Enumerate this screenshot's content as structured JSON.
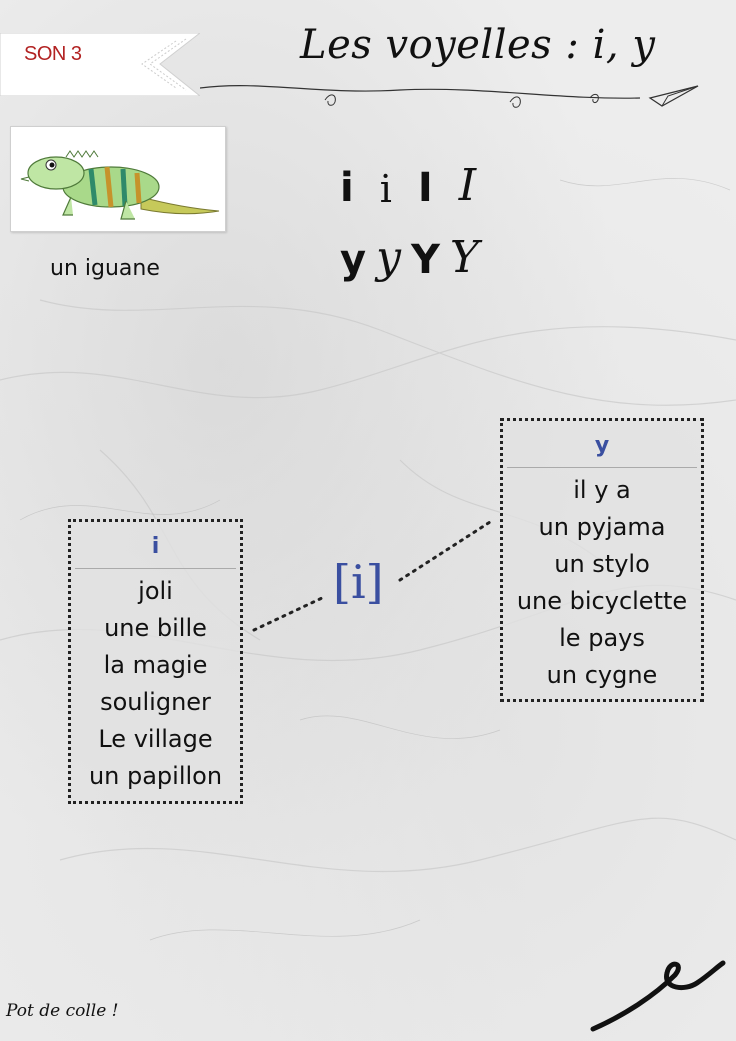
{
  "tag": {
    "label": "SON 3",
    "color": "#b22222"
  },
  "title": "Les voyelles : i, y",
  "illustration": {
    "icon": "iguana-icon",
    "caption": "un iguane"
  },
  "letters": {
    "i": [
      "i",
      "i",
      "I",
      "I"
    ],
    "y": [
      "y",
      "y",
      "Y",
      "Y"
    ]
  },
  "phoneme": "[i]",
  "accent_color": "#3a4fa0",
  "box_i": {
    "header": "i",
    "words": [
      "joli",
      "une bille",
      "la magie",
      "souligner",
      "Le village",
      "un papillon"
    ]
  },
  "box_y": {
    "header": "y",
    "words": [
      "il y a",
      "un pyjama",
      "un stylo",
      "une bicyclette",
      "le pays",
      "un cygne"
    ]
  },
  "footer": "Pot de colle !"
}
